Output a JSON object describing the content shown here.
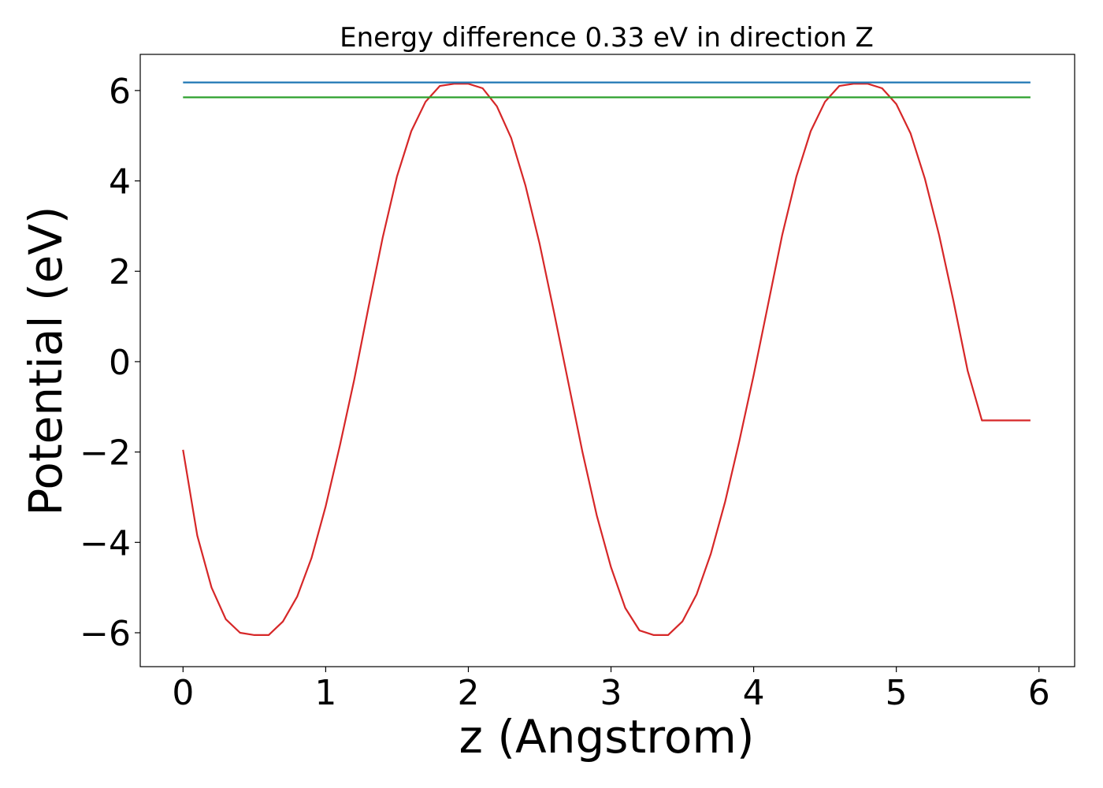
{
  "chart_data": {
    "type": "line",
    "title": "Energy difference 0.33 eV in direction Z",
    "xlabel": "z (Angstrom)",
    "ylabel": "Potential (eV)",
    "xlim": [
      -0.3,
      6.25
    ],
    "ylim": [
      -6.75,
      6.8
    ],
    "x_ticks": [
      0,
      1,
      2,
      3,
      4,
      5,
      6
    ],
    "y_ticks": [
      -6,
      -4,
      -2,
      0,
      2,
      4,
      6
    ],
    "x_tick_labels": [
      "0",
      "1",
      "2",
      "3",
      "4",
      "5",
      "6"
    ],
    "y_tick_labels": [
      "−6",
      "−4",
      "−2",
      "0",
      "2",
      "4",
      "6"
    ],
    "grid": false,
    "legend": "none",
    "series": [
      {
        "color": "#d62728",
        "x": [
          0,
          0.1,
          0.2,
          0.3,
          0.4,
          0.5,
          0.6,
          0.7,
          0.8,
          0.9,
          1.0,
          1.1,
          1.2,
          1.3,
          1.4,
          1.5,
          1.6,
          1.7,
          1.8,
          1.9,
          2.0,
          2.1,
          2.2,
          2.3,
          2.4,
          2.5,
          2.6,
          2.7,
          2.8,
          2.9,
          3.0,
          3.1,
          3.2,
          3.3,
          3.4,
          3.5,
          3.6,
          3.7,
          3.8,
          3.9,
          4.0,
          4.1,
          4.2,
          4.3,
          4.4,
          4.5,
          4.6,
          4.7,
          4.8,
          4.9,
          5.0,
          5.1,
          5.2,
          5.3,
          5.4,
          5.5,
          5.6,
          5.7,
          5.8,
          5.94
        ],
        "y": [
          -1.95,
          -3.85,
          -5.0,
          -5.7,
          -6.0,
          -6.05,
          -6.05,
          -5.75,
          -5.2,
          -4.35,
          -3.2,
          -1.85,
          -0.4,
          1.2,
          2.75,
          4.1,
          5.1,
          5.75,
          6.1,
          6.15,
          6.15,
          6.05,
          5.65,
          4.95,
          3.9,
          2.6,
          1.1,
          -0.45,
          -2.0,
          -3.4,
          -4.55,
          -5.45,
          -5.95,
          -6.05,
          -6.05,
          -5.75,
          -5.15,
          -4.25,
          -3.1,
          -1.75,
          -0.3,
          1.25,
          2.8,
          4.1,
          5.1,
          5.75,
          6.1,
          6.15,
          6.15,
          6.05,
          5.7,
          5.05,
          4.05,
          2.8,
          1.35,
          -0.2,
          -1.3,
          -1.3,
          -1.3,
          -1.3
        ]
      },
      {
        "color": "#1f77b4",
        "x": [
          0,
          5.94
        ],
        "y": [
          6.18,
          6.18
        ]
      },
      {
        "color": "#2ca02c",
        "x": [
          0,
          5.94
        ],
        "y": [
          5.85,
          5.85
        ]
      }
    ]
  }
}
